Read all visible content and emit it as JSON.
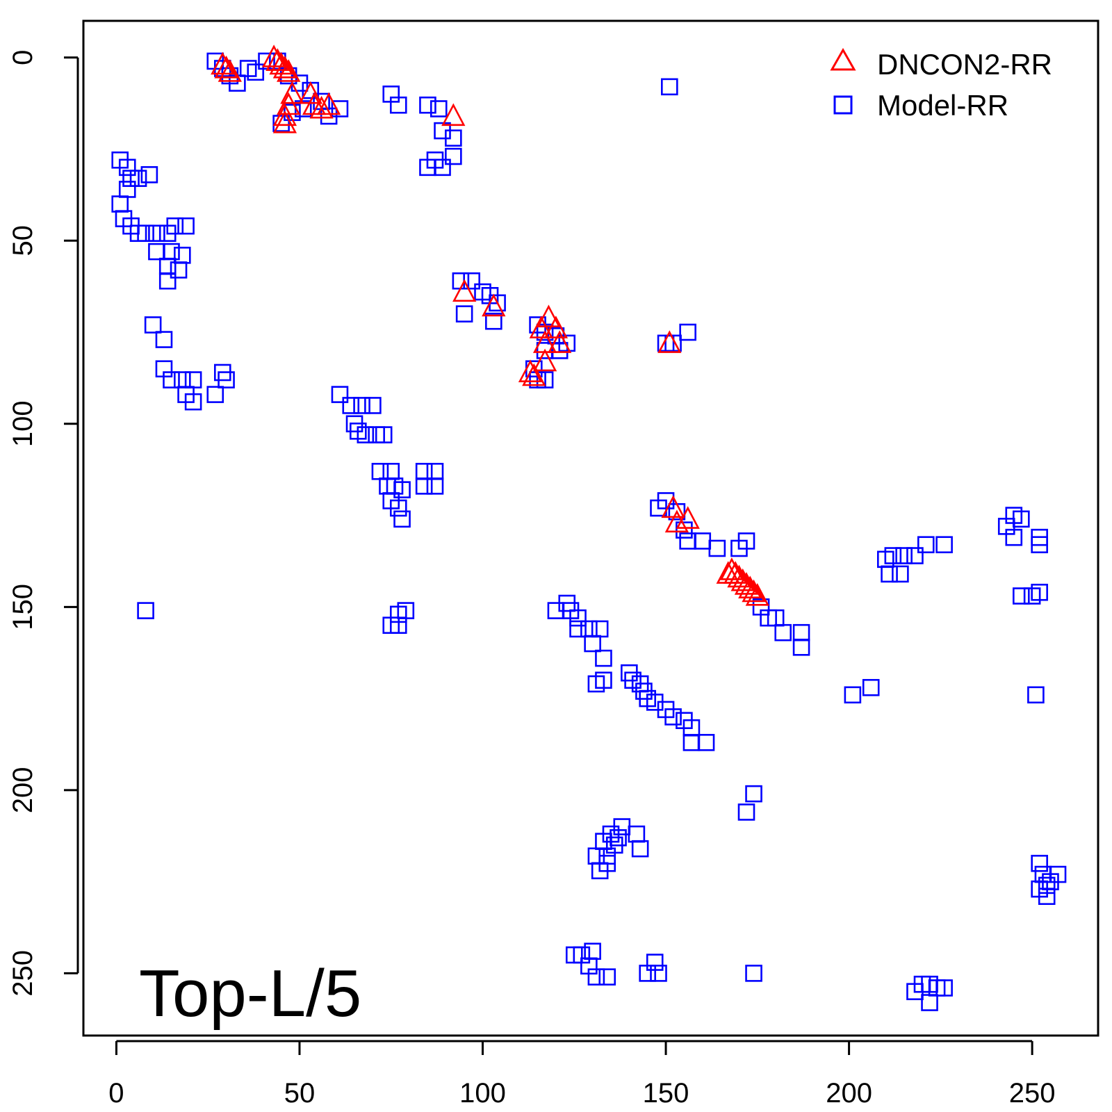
{
  "chart_data": {
    "type": "scatter",
    "title": "",
    "annotation": "Top-L/5",
    "xlabel": "",
    "ylabel": "",
    "xlim": [
      -9,
      268
    ],
    "ylim": [
      -10,
      267
    ],
    "y_axis_inverted": true,
    "grid": false,
    "legend_position": "top-right",
    "x_ticks": [
      0,
      50,
      100,
      150,
      200,
      250
    ],
    "y_ticks": [
      0,
      50,
      100,
      150,
      200,
      250
    ],
    "x_tick_labels": [
      "0",
      "50",
      "100",
      "150",
      "200",
      "250"
    ],
    "y_tick_labels": [
      "0",
      "50",
      "100",
      "150",
      "200",
      "250"
    ],
    "series": [
      {
        "name": "DNCON2-RR",
        "marker": "triangle",
        "color": "#ff0000",
        "points": [
          [
            29,
            2
          ],
          [
            30,
            3
          ],
          [
            31,
            4
          ],
          [
            43,
            0
          ],
          [
            44,
            1
          ],
          [
            45,
            2
          ],
          [
            46,
            3
          ],
          [
            47,
            4
          ],
          [
            48,
            10
          ],
          [
            47,
            13
          ],
          [
            46,
            16
          ],
          [
            46,
            18
          ],
          [
            53,
            10
          ],
          [
            54,
            13
          ],
          [
            56,
            14
          ],
          [
            58,
            13
          ],
          [
            92,
            16
          ],
          [
            95,
            64
          ],
          [
            103,
            68
          ],
          [
            118,
            71
          ],
          [
            116,
            74
          ],
          [
            120,
            74
          ],
          [
            117,
            78
          ],
          [
            121,
            78
          ],
          [
            117,
            83
          ],
          [
            113,
            86
          ],
          [
            114,
            87
          ],
          [
            151,
            78
          ],
          [
            152,
            123
          ],
          [
            153,
            127
          ],
          [
            156,
            126
          ],
          [
            167,
            141
          ],
          [
            168,
            140
          ],
          [
            169,
            141
          ],
          [
            170,
            142
          ],
          [
            171,
            143
          ],
          [
            172,
            144
          ],
          [
            173,
            145
          ],
          [
            174,
            146
          ],
          [
            175,
            147
          ]
        ]
      },
      {
        "name": "Model-RR",
        "marker": "square",
        "color": "#0000ff",
        "points": [
          [
            27,
            1
          ],
          [
            29,
            3
          ],
          [
            31,
            5
          ],
          [
            33,
            7
          ],
          [
            36,
            3
          ],
          [
            38,
            4
          ],
          [
            41,
            1
          ],
          [
            44,
            1
          ],
          [
            47,
            5
          ],
          [
            50,
            7
          ],
          [
            45,
            18
          ],
          [
            48,
            15
          ],
          [
            51,
            14
          ],
          [
            53,
            9
          ],
          [
            56,
            12
          ],
          [
            58,
            16
          ],
          [
            61,
            14
          ],
          [
            75,
            10
          ],
          [
            77,
            13
          ],
          [
            85,
            13
          ],
          [
            88,
            14
          ],
          [
            89,
            20
          ],
          [
            92,
            22
          ],
          [
            87,
            28
          ],
          [
            92,
            27
          ],
          [
            85,
            30
          ],
          [
            89,
            30
          ],
          [
            151,
            8
          ],
          [
            1,
            28
          ],
          [
            3,
            30
          ],
          [
            4,
            33
          ],
          [
            6,
            33
          ],
          [
            9,
            32
          ],
          [
            3,
            36
          ],
          [
            1,
            40
          ],
          [
            2,
            44
          ],
          [
            4,
            46
          ],
          [
            6,
            48
          ],
          [
            8,
            48
          ],
          [
            11,
            48
          ],
          [
            14,
            48
          ],
          [
            16,
            46
          ],
          [
            19,
            46
          ],
          [
            11,
            53
          ],
          [
            15,
            53
          ],
          [
            18,
            54
          ],
          [
            14,
            57
          ],
          [
            17,
            58
          ],
          [
            14,
            61
          ],
          [
            10,
            73
          ],
          [
            13,
            77
          ],
          [
            13,
            85
          ],
          [
            15,
            88
          ],
          [
            18,
            88
          ],
          [
            21,
            88
          ],
          [
            19,
            92
          ],
          [
            21,
            94
          ],
          [
            27,
            92
          ],
          [
            29,
            86
          ],
          [
            30,
            88
          ],
          [
            61,
            92
          ],
          [
            64,
            95
          ],
          [
            67,
            95
          ],
          [
            70,
            95
          ],
          [
            65,
            100
          ],
          [
            66,
            102
          ],
          [
            68,
            103
          ],
          [
            71,
            103
          ],
          [
            73,
            103
          ],
          [
            72,
            113
          ],
          [
            75,
            113
          ],
          [
            74,
            117
          ],
          [
            76,
            117
          ],
          [
            78,
            118
          ],
          [
            75,
            121
          ],
          [
            77,
            123
          ],
          [
            78,
            126
          ],
          [
            84,
            113
          ],
          [
            87,
            113
          ],
          [
            84,
            117
          ],
          [
            87,
            117
          ],
          [
            94,
            61
          ],
          [
            97,
            61
          ],
          [
            100,
            64
          ],
          [
            102,
            65
          ],
          [
            104,
            67
          ],
          [
            103,
            72
          ],
          [
            95,
            70
          ],
          [
            115,
            73
          ],
          [
            117,
            75
          ],
          [
            120,
            76
          ],
          [
            123,
            78
          ],
          [
            117,
            80
          ],
          [
            121,
            80
          ],
          [
            114,
            85
          ],
          [
            115,
            88
          ],
          [
            117,
            88
          ],
          [
            150,
            78
          ],
          [
            152,
            78
          ],
          [
            156,
            75
          ],
          [
            150,
            121
          ],
          [
            148,
            123
          ],
          [
            153,
            124
          ],
          [
            155,
            129
          ],
          [
            156,
            132
          ],
          [
            160,
            132
          ],
          [
            164,
            134
          ],
          [
            170,
            134
          ],
          [
            172,
            132
          ],
          [
            176,
            150
          ],
          [
            178,
            153
          ],
          [
            180,
            153
          ],
          [
            182,
            157
          ],
          [
            187,
            157
          ],
          [
            187,
            161
          ],
          [
            210,
            137
          ],
          [
            212,
            136
          ],
          [
            215,
            136
          ],
          [
            218,
            136
          ],
          [
            221,
            133
          ],
          [
            226,
            133
          ],
          [
            211,
            141
          ],
          [
            214,
            141
          ],
          [
            245,
            125
          ],
          [
            247,
            126
          ],
          [
            243,
            128
          ],
          [
            245,
            131
          ],
          [
            252,
            131
          ],
          [
            252,
            133
          ],
          [
            247,
            147
          ],
          [
            250,
            147
          ],
          [
            252,
            146
          ],
          [
            8,
            151
          ],
          [
            79,
            151
          ],
          [
            77,
            152
          ],
          [
            75,
            155
          ],
          [
            77,
            155
          ],
          [
            120,
            151
          ],
          [
            123,
            149
          ],
          [
            124,
            151
          ],
          [
            126,
            153
          ],
          [
            126,
            156
          ],
          [
            129,
            156
          ],
          [
            132,
            156
          ],
          [
            130,
            160
          ],
          [
            133,
            164
          ],
          [
            133,
            170
          ],
          [
            131,
            171
          ],
          [
            140,
            168
          ],
          [
            141,
            170
          ],
          [
            143,
            171
          ],
          [
            144,
            173
          ],
          [
            145,
            175
          ],
          [
            147,
            176
          ],
          [
            150,
            178
          ],
          [
            152,
            180
          ],
          [
            155,
            181
          ],
          [
            157,
            183
          ],
          [
            157,
            187
          ],
          [
            161,
            187
          ],
          [
            201,
            174
          ],
          [
            206,
            172
          ],
          [
            251,
            174
          ],
          [
            174,
            201
          ],
          [
            172,
            206
          ],
          [
            133,
            214
          ],
          [
            135,
            212
          ],
          [
            137,
            213
          ],
          [
            138,
            210
          ],
          [
            142,
            212
          ],
          [
            143,
            216
          ],
          [
            134,
            220
          ],
          [
            131,
            218
          ],
          [
            134,
            218
          ],
          [
            136,
            215
          ],
          [
            132,
            222
          ],
          [
            127,
            245
          ],
          [
            125,
            245
          ],
          [
            130,
            244
          ],
          [
            129,
            248
          ],
          [
            131,
            251
          ],
          [
            134,
            251
          ],
          [
            145,
            250
          ],
          [
            148,
            250
          ],
          [
            147,
            247
          ],
          [
            174,
            250
          ],
          [
            218,
            255
          ],
          [
            220,
            253
          ],
          [
            222,
            253
          ],
          [
            224,
            254
          ],
          [
            226,
            254
          ],
          [
            222,
            258
          ],
          [
            252,
            220
          ],
          [
            253,
            223
          ],
          [
            254,
            226
          ],
          [
            255,
            225
          ],
          [
            257,
            223
          ],
          [
            252,
            227
          ],
          [
            254,
            229
          ]
        ]
      }
    ]
  }
}
